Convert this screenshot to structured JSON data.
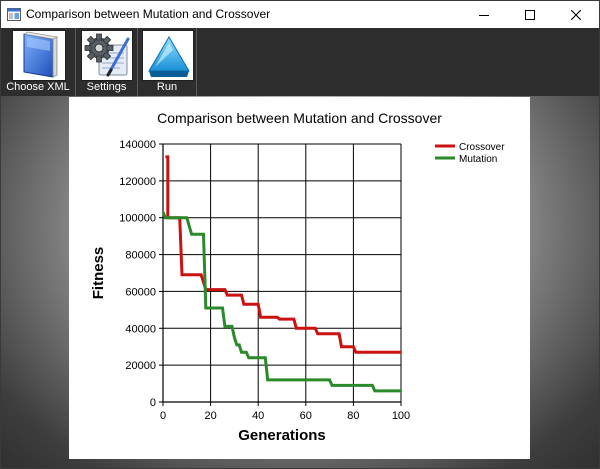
{
  "window": {
    "title": "Comparison between Mutation and Crossover",
    "controls": [
      "minimize-icon",
      "maximize-icon",
      "close-icon"
    ]
  },
  "toolbar": {
    "buttons": [
      {
        "label": "Choose XML",
        "icon": "book-icon"
      },
      {
        "label": "Settings",
        "icon": "gear-icon"
      },
      {
        "label": "Run",
        "icon": "play-triangle-icon"
      }
    ]
  },
  "colors": {
    "crossover": "#cc1111",
    "mutation": "#2a8a2a",
    "toolbar": "#2d2d2d"
  },
  "chart_data": {
    "type": "line",
    "title": "Comparison between Mutation and Crossover",
    "xlabel": "Generations",
    "ylabel": "Fitness",
    "xlim": [
      0,
      100
    ],
    "ylim": [
      0,
      140000
    ],
    "x_ticks": [
      "0",
      "20",
      "40",
      "60",
      "80",
      "100"
    ],
    "y_ticks": [
      "0",
      "20000",
      "40000",
      "60000",
      "80000",
      "100000",
      "120000",
      "140000"
    ],
    "grid": true,
    "legend_position": "top-right",
    "series": [
      {
        "name": "Crossover",
        "points": [
          [
            1,
            133000
          ],
          [
            2,
            133000
          ],
          [
            2,
            100000
          ],
          [
            7,
            100000
          ],
          [
            8,
            69000
          ],
          [
            16,
            69000
          ],
          [
            17,
            65000
          ],
          [
            18,
            61000
          ],
          [
            26,
            61000
          ],
          [
            27,
            58000
          ],
          [
            33,
            58000
          ],
          [
            34,
            53000
          ],
          [
            40,
            53000
          ],
          [
            41,
            46000
          ],
          [
            48,
            46000
          ],
          [
            49,
            45000
          ],
          [
            55,
            45000
          ],
          [
            56,
            40000
          ],
          [
            64,
            40000
          ],
          [
            65,
            37000
          ],
          [
            74,
            37000
          ],
          [
            75,
            30000
          ],
          [
            80,
            30000
          ],
          [
            81,
            27000
          ],
          [
            100,
            27000
          ]
        ]
      },
      {
        "name": "Mutation",
        "points": [
          [
            0,
            103000
          ],
          [
            1,
            100000
          ],
          [
            10,
            100000
          ],
          [
            12,
            91000
          ],
          [
            17,
            91000
          ],
          [
            18,
            51000
          ],
          [
            25,
            51000
          ],
          [
            26,
            41000
          ],
          [
            29,
            41000
          ],
          [
            30,
            35000
          ],
          [
            31,
            31000
          ],
          [
            32,
            31000
          ],
          [
            33,
            27000
          ],
          [
            35,
            27000
          ],
          [
            36,
            24000
          ],
          [
            43,
            24000
          ],
          [
            44,
            12000
          ],
          [
            70,
            12000
          ],
          [
            71,
            9000
          ],
          [
            88,
            9000
          ],
          [
            89,
            6000
          ],
          [
            100,
            6000
          ]
        ]
      }
    ]
  }
}
